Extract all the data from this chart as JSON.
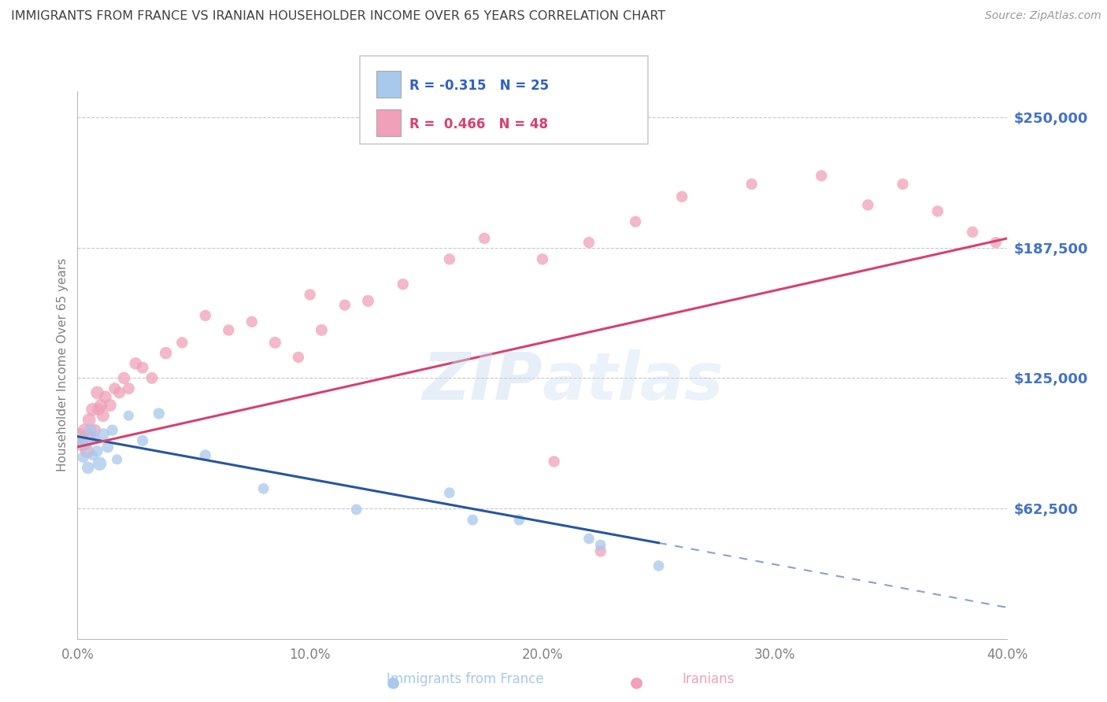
{
  "title": "IMMIGRANTS FROM FRANCE VS IRANIAN HOUSEHOLDER INCOME OVER 65 YEARS CORRELATION CHART",
  "source": "Source: ZipAtlas.com",
  "ylabel": "Householder Income Over 65 years",
  "legend_labels": [
    "Immigrants from France",
    "Iranians"
  ],
  "legend_r": [
    "R = -0.315",
    "R =  0.466"
  ],
  "legend_n": [
    "N = 25",
    "N = 48"
  ],
  "blue_color": "#A8C8EC",
  "pink_color": "#F0A0B8",
  "blue_line_color": "#2855A0",
  "pink_line_color": "#D84070",
  "y_tick_labels": [
    "$62,500",
    "$125,000",
    "$187,500",
    "$250,000"
  ],
  "y_tick_values": [
    62500,
    125000,
    187500,
    250000
  ],
  "x_tick_labels": [
    "0.0%",
    "10.0%",
    "20.0%",
    "30.0%",
    "40.0%"
  ],
  "x_tick_values": [
    0.0,
    10.0,
    20.0,
    30.0,
    40.0
  ],
  "xlim": [
    0.0,
    40.0
  ],
  "ylim": [
    0,
    262500
  ],
  "blue_x": [
    0.15,
    0.25,
    0.35,
    0.45,
    0.55,
    0.65,
    0.75,
    0.85,
    0.95,
    1.1,
    1.3,
    1.5,
    1.7,
    2.2,
    2.8,
    3.5,
    5.5,
    8.0,
    12.0,
    16.0,
    17.0,
    19.0,
    22.0,
    22.5,
    25.0
  ],
  "blue_y": [
    95000,
    87000,
    93000,
    82000,
    100000,
    88000,
    96000,
    90000,
    84000,
    98000,
    92000,
    100000,
    86000,
    107000,
    95000,
    108000,
    88000,
    72000,
    62000,
    70000,
    57000,
    57000,
    48000,
    45000,
    35000
  ],
  "blue_sizes": [
    800,
    600,
    600,
    700,
    700,
    500,
    500,
    600,
    900,
    700,
    650,
    600,
    500,
    500,
    600,
    600,
    600,
    550,
    550,
    550,
    550,
    550,
    550,
    550,
    550
  ],
  "pink_x": [
    0.1,
    0.2,
    0.3,
    0.4,
    0.5,
    0.55,
    0.65,
    0.75,
    0.85,
    0.9,
    1.0,
    1.1,
    1.2,
    1.4,
    1.6,
    1.8,
    2.0,
    2.2,
    2.5,
    2.8,
    3.2,
    3.8,
    4.5,
    5.5,
    6.5,
    7.5,
    8.5,
    9.5,
    10.5,
    11.5,
    12.5,
    14.0,
    16.0,
    17.5,
    20.0,
    22.0,
    24.0,
    26.0,
    29.0,
    32.0,
    34.0,
    35.5,
    37.0,
    38.5,
    39.5,
    10.0,
    20.5,
    22.5
  ],
  "pink_y": [
    97000,
    93000,
    100000,
    90000,
    105000,
    97000,
    110000,
    100000,
    118000,
    110000,
    112000,
    107000,
    116000,
    112000,
    120000,
    118000,
    125000,
    120000,
    132000,
    130000,
    125000,
    137000,
    142000,
    155000,
    148000,
    152000,
    142000,
    135000,
    148000,
    160000,
    162000,
    170000,
    182000,
    192000,
    182000,
    190000,
    200000,
    212000,
    218000,
    222000,
    208000,
    218000,
    205000,
    195000,
    190000,
    165000,
    85000,
    42000
  ],
  "pink_sizes": [
    1200,
    800,
    800,
    900,
    800,
    700,
    800,
    700,
    800,
    700,
    750,
    750,
    700,
    750,
    650,
    650,
    700,
    650,
    700,
    650,
    650,
    700,
    600,
    600,
    600,
    600,
    650,
    600,
    650,
    600,
    650,
    600,
    600,
    600,
    600,
    600,
    600,
    600,
    600,
    600,
    600,
    600,
    600,
    600,
    600,
    600,
    600,
    600
  ],
  "blue_trend": [
    0.0,
    25.0,
    97000,
    46000
  ],
  "pink_trend": [
    0.0,
    40.0,
    92000,
    192000
  ],
  "blue_dash": [
    25.0,
    40.0,
    46000,
    15000
  ],
  "right_axis_color": "#4472C4",
  "title_color": "#404040",
  "axis_label_color": "#808080",
  "grid_color": "#C8C8C8",
  "background_color": "#FFFFFF",
  "legend_r_color": "#3060C0",
  "legend_p_color": "#D84070"
}
